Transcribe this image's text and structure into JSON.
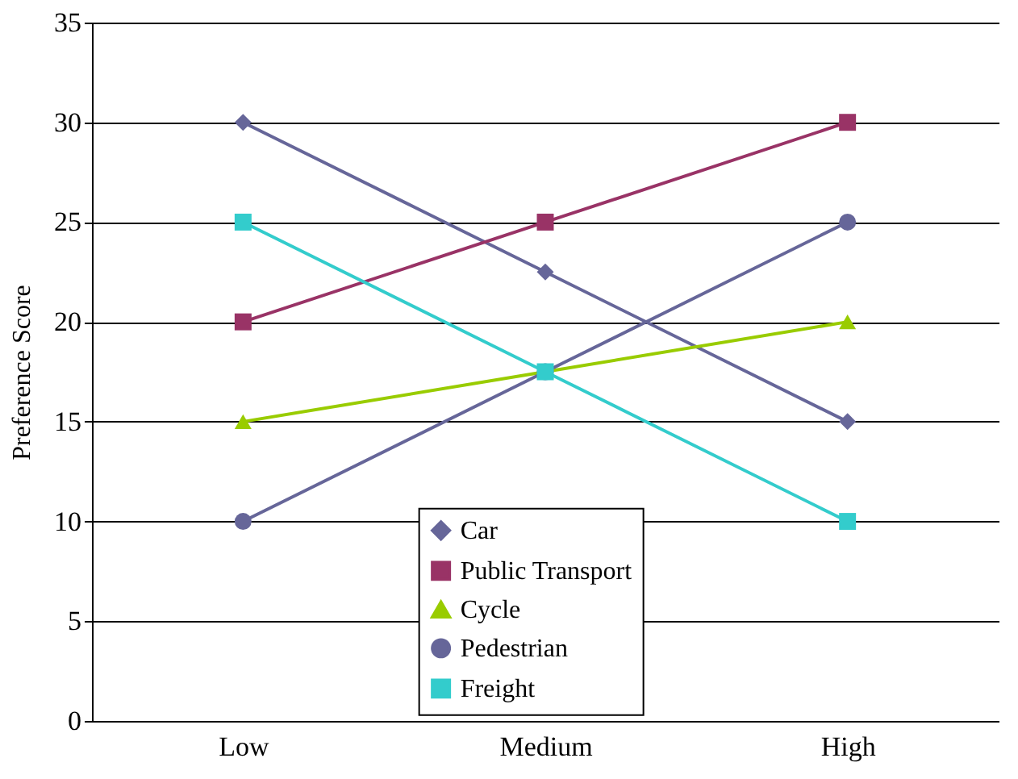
{
  "chart_data": {
    "type": "line",
    "ylabel": "Preference Score",
    "categories": [
      "Low",
      "Medium",
      "High"
    ],
    "series": [
      {
        "name": "Car",
        "color": "#666699",
        "marker": "diamond",
        "values": [
          30,
          22.5,
          15
        ]
      },
      {
        "name": "Public Transport",
        "color": "#993366",
        "marker": "square",
        "values": [
          20,
          25,
          30
        ]
      },
      {
        "name": "Cycle",
        "color": "#99cc00",
        "marker": "triangle",
        "values": [
          15,
          17.5,
          20
        ]
      },
      {
        "name": "Pedestrian",
        "color": "#666699",
        "marker": "circle",
        "values": [
          10,
          17.5,
          25
        ]
      },
      {
        "name": "Freight",
        "color": "#33cccc",
        "marker": "square",
        "values": [
          25,
          17.5,
          10
        ]
      }
    ],
    "ylim": [
      0,
      35
    ],
    "yticks": [
      0,
      5,
      10,
      15,
      20,
      25,
      30,
      35
    ],
    "grid": "y",
    "legend": "bottom",
    "line_style": "solid"
  }
}
